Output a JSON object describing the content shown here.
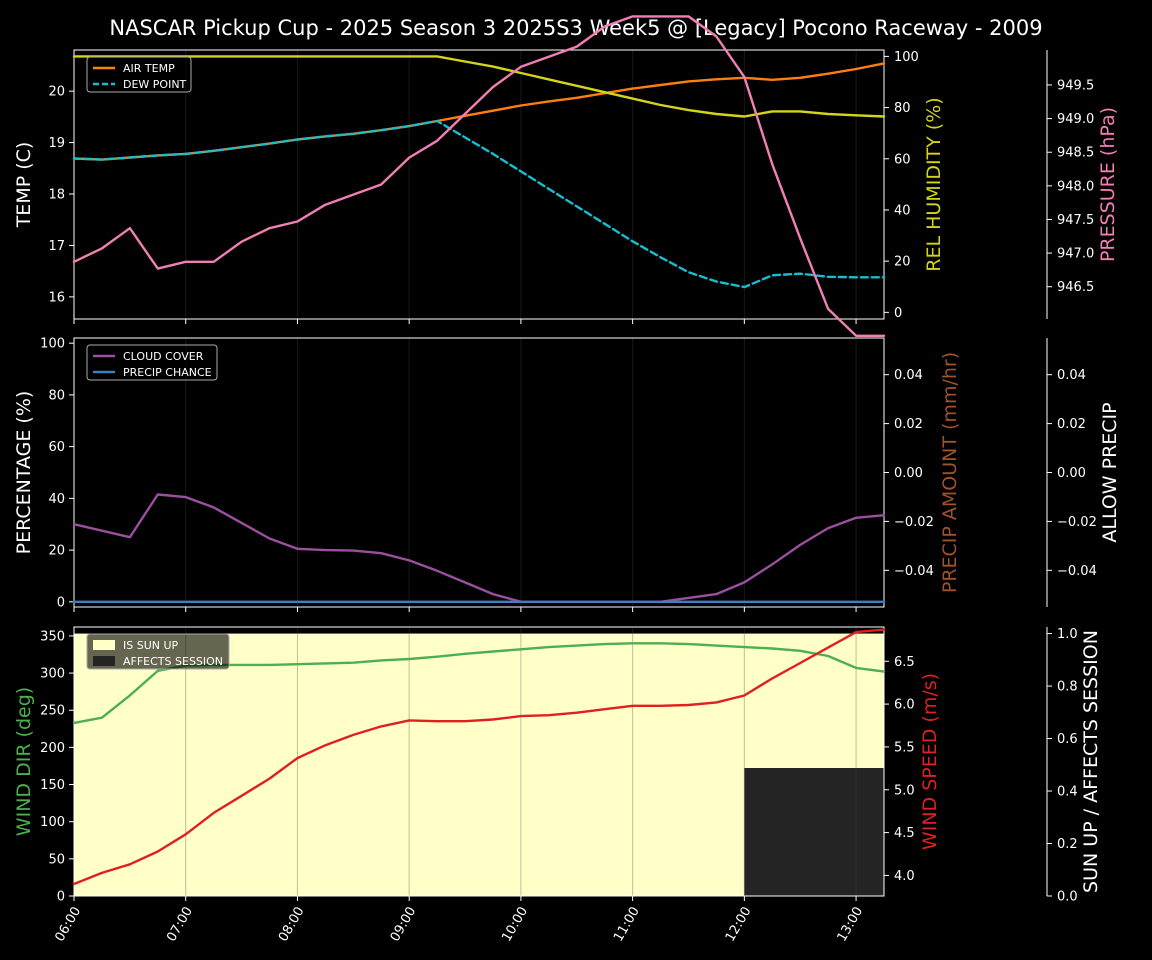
{
  "title": "NASCAR Pickup Cup - 2025 Season 3 2025S3 Week5 @ [Legacy] Pocono Raceway - 2009",
  "colors": {
    "air_temp": "#ff7f0e",
    "dew_point": "#17becf",
    "humidity": "#d4d41a",
    "pressure": "#f07fb4",
    "cloud": "#9b4f9f",
    "precip_chance": "#3f7fbf",
    "precip_amount_label": "#a0522d",
    "wind_dir": "#4caf50",
    "wind_speed": "#e02020",
    "sun_up": "#ffffc8",
    "affects_session": "#242424"
  },
  "x_ticks": [
    "06:00",
    "07:00",
    "08:00",
    "09:00",
    "10:00",
    "11:00",
    "12:00",
    "13:00"
  ],
  "chart_data": [
    {
      "type": "line",
      "panel": "weather",
      "x": [
        6.0,
        6.25,
        6.5,
        6.75,
        7.0,
        7.25,
        7.5,
        7.75,
        8.0,
        8.25,
        8.5,
        8.75,
        9.0,
        9.25,
        9.5,
        9.75,
        10.0,
        10.25,
        10.5,
        10.75,
        11.0,
        11.25,
        11.5,
        11.75,
        12.0,
        12.25,
        12.5,
        12.75,
        13.0,
        13.25
      ],
      "xlim": [
        6.0,
        13.25
      ],
      "ylabel": "TEMP (C)",
      "ylim": [
        15.57,
        20.8
      ],
      "y_ticks": [
        16,
        17,
        18,
        19,
        20
      ],
      "series": [
        {
          "name": "AIR TEMP",
          "axis": "left",
          "style": "solid",
          "values": [
            18.69,
            18.67,
            18.71,
            18.75,
            18.78,
            18.84,
            18.91,
            18.98,
            19.06,
            19.12,
            19.17,
            19.24,
            19.32,
            19.42,
            19.52,
            19.62,
            19.72,
            19.8,
            19.87,
            19.96,
            20.05,
            20.12,
            20.19,
            20.23,
            20.26,
            20.22,
            20.26,
            20.34,
            20.43,
            20.54
          ]
        },
        {
          "name": "DEW POINT",
          "axis": "left",
          "style": "dashed",
          "values": [
            18.69,
            18.67,
            18.71,
            18.75,
            18.78,
            18.84,
            18.91,
            18.98,
            19.06,
            19.12,
            19.17,
            19.24,
            19.32,
            19.42,
            19.1,
            18.78,
            18.44,
            18.1,
            17.76,
            17.42,
            17.08,
            16.77,
            16.48,
            16.3,
            16.19,
            16.42,
            16.45,
            16.39,
            16.38,
            16.38
          ]
        },
        {
          "name": "REL HUMIDITY",
          "axis": "right1",
          "style": "solid",
          "values": [
            100,
            100,
            100,
            100,
            100,
            100,
            100,
            100,
            100,
            100,
            100,
            100,
            100,
            100,
            98,
            96,
            93.5,
            91,
            88.5,
            86,
            83.5,
            81,
            79,
            77.5,
            76.5,
            78.5,
            78.5,
            77.5,
            77,
            76.5
          ]
        },
        {
          "name": "PRESSURE",
          "axis": "right2",
          "style": "solid",
          "values": [
            946.87,
            947.07,
            947.37,
            946.77,
            946.87,
            946.87,
            947.17,
            947.37,
            947.47,
            947.72,
            947.87,
            948.02,
            948.42,
            948.67,
            949.07,
            949.47,
            949.77,
            949.92,
            950.07,
            950.37,
            950.52,
            950.52,
            950.52,
            950.22,
            949.62,
            948.32,
            947.22,
            946.17,
            945.77,
            945.77
          ]
        }
      ],
      "right_axes": [
        {
          "id": "right1",
          "label": "REL HUMIDITY (%)",
          "ylim": [
            -2.6,
            102.5
          ],
          "ticks": [
            0,
            20,
            40,
            60,
            80,
            100
          ]
        },
        {
          "id": "right2",
          "label": "PRESSURE (hPa)",
          "ylim": [
            946.02,
            950.02
          ],
          "ticks": [
            946.5,
            947.0,
            947.5,
            948.0,
            948.5,
            949.0,
            949.5
          ],
          "tick_labels": [
            "946.5",
            "947.0",
            "947.5",
            "948.0",
            "948.5",
            "949.0",
            "949.5"
          ]
        }
      ],
      "legend": {
        "placement": "top-left",
        "entries": [
          "AIR TEMP",
          "DEW POINT"
        ]
      }
    },
    {
      "type": "line",
      "panel": "clouds",
      "x": [
        6.0,
        6.25,
        6.5,
        6.75,
        7.0,
        7.25,
        7.5,
        7.75,
        8.0,
        8.25,
        8.5,
        8.75,
        9.0,
        9.25,
        9.5,
        9.75,
        10.0,
        10.25,
        10.5,
        10.75,
        11.0,
        11.25,
        11.5,
        11.75,
        12.0,
        12.25,
        12.5,
        12.75,
        13.0,
        13.25
      ],
      "xlim": [
        6.0,
        13.25
      ],
      "ylabel": "PERCENTAGE (%)",
      "ylim": [
        -2,
        102
      ],
      "y_ticks": [
        0,
        20,
        40,
        60,
        80,
        100
      ],
      "series": [
        {
          "name": "CLOUD COVER",
          "axis": "left",
          "values": [
            30,
            27.5,
            25,
            41.5,
            40.5,
            36.5,
            30.5,
            24.5,
            20.5,
            20,
            19.8,
            18.8,
            16,
            12,
            7.5,
            3,
            0,
            0,
            0,
            0,
            0,
            0,
            1.5,
            3,
            7.5,
            14.5,
            22,
            28.5,
            32.5,
            33.5
          ]
        },
        {
          "name": "PRECIP CHANCE",
          "axis": "left",
          "values": [
            0,
            0,
            0,
            0,
            0,
            0,
            0,
            0,
            0,
            0,
            0,
            0,
            0,
            0,
            0,
            0,
            0,
            0,
            0,
            0,
            0,
            0,
            0,
            0,
            0,
            0,
            0,
            0,
            0,
            0
          ]
        }
      ],
      "right_axes": [
        {
          "id": "right1",
          "label": "PRECIP AMOUNT (mm/hr)",
          "ylim": [
            -0.055,
            0.055
          ],
          "ticks": [
            -0.04,
            -0.02,
            0.0,
            0.02,
            0.04
          ],
          "tick_labels": [
            "−0.04",
            "−0.02",
            "0.00",
            "0.02",
            "0.04"
          ]
        },
        {
          "id": "right2",
          "label": "ALLOW PRECIP",
          "ylim": [
            -0.055,
            0.055
          ],
          "ticks": [
            -0.04,
            -0.02,
            0.0,
            0.02,
            0.04
          ],
          "tick_labels": [
            "−0.04",
            "−0.02",
            "0.00",
            "0.02",
            "0.04"
          ]
        }
      ],
      "legend": {
        "placement": "top-left",
        "entries": [
          "CLOUD COVER",
          "PRECIP CHANCE"
        ]
      }
    },
    {
      "type": "line",
      "panel": "wind",
      "x": [
        6.0,
        6.25,
        6.5,
        6.75,
        7.0,
        7.25,
        7.5,
        7.75,
        8.0,
        8.25,
        8.5,
        8.75,
        9.0,
        9.25,
        9.5,
        9.75,
        10.0,
        10.25,
        10.5,
        10.75,
        11.0,
        11.25,
        11.5,
        11.75,
        12.0,
        12.25,
        12.5,
        12.75,
        13.0,
        13.25
      ],
      "xlim": [
        6.0,
        13.25
      ],
      "ylabel": "WIND DIR (deg)",
      "ylim": [
        0,
        362
      ],
      "y_ticks": [
        0,
        50,
        100,
        150,
        200,
        250,
        300,
        350
      ],
      "series": [
        {
          "name": "WIND DIR",
          "axis": "left",
          "values": [
            233,
            240,
            270,
            303,
            310,
            311,
            311,
            311,
            312,
            313,
            314,
            317,
            319,
            322,
            326,
            329,
            332,
            335,
            337,
            339,
            340,
            340,
            339,
            337,
            335,
            333,
            330,
            323,
            307,
            302
          ]
        },
        {
          "name": "WIND SPEED",
          "axis": "right1",
          "values": [
            3.9,
            4.03,
            4.13,
            4.28,
            4.48,
            4.73,
            4.93,
            5.13,
            5.37,
            5.52,
            5.64,
            5.74,
            5.81,
            5.8,
            5.8,
            5.82,
            5.86,
            5.87,
            5.9,
            5.94,
            5.98,
            5.98,
            5.99,
            6.02,
            6.1,
            6.3,
            6.48,
            6.66,
            6.84,
            6.87
          ]
        }
      ],
      "sun_up": {
        "label": "IS SUN UP",
        "value": 1,
        "from": 6.0,
        "to": 13.25
      },
      "affects_session": {
        "label": "AFFECTS SESSION",
        "value": 1,
        "from": 12.0,
        "to": 13.25
      },
      "right_axes": [
        {
          "id": "right1",
          "label": "WIND SPEED (m/s)",
          "ylim": [
            3.76,
            6.9
          ],
          "ticks": [
            4.0,
            4.5,
            5.0,
            5.5,
            6.0,
            6.5
          ],
          "tick_labels": [
            "4.0",
            "4.5",
            "5.0",
            "5.5",
            "6.0",
            "6.5"
          ]
        },
        {
          "id": "right2",
          "label": "SUN UP / AFFECTS SESSION",
          "ylim": [
            0,
            1.025
          ],
          "ticks": [
            0,
            0.2,
            0.4,
            0.6,
            0.8,
            1.0
          ],
          "tick_labels": [
            "0.0",
            "0.2",
            "0.4",
            "0.6",
            "0.8",
            "1.0"
          ]
        }
      ],
      "legend": {
        "placement": "top-left",
        "entries": [
          "IS SUN UP",
          "AFFECTS SESSION"
        ]
      }
    }
  ]
}
